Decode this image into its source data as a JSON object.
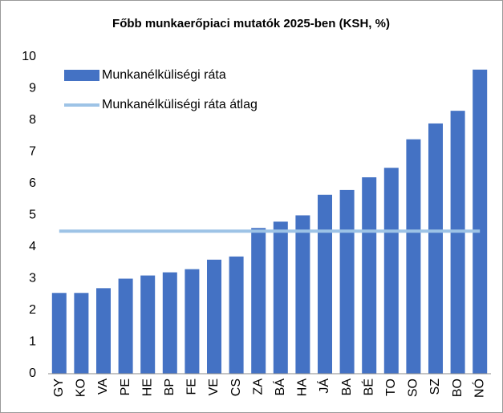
{
  "chart_data": {
    "type": "bar",
    "title": "Főbb munkaerőpiaci mutatók 2025-ben (KSH, %)",
    "categories": [
      "GY",
      "KO",
      "VA",
      "PE",
      "HE",
      "BP",
      "FE",
      "VE",
      "CS",
      "ZA",
      "BÁ",
      "HA",
      "JÁ",
      "BA",
      "BÉ",
      "TO",
      "SO",
      "SZ",
      "BO",
      "NÓ"
    ],
    "series": [
      {
        "name": "Munkanélküliségi ráta",
        "type": "bar",
        "color": "#4472c4",
        "values": [
          2.55,
          2.55,
          2.7,
          3.0,
          3.1,
          3.2,
          3.3,
          3.6,
          3.7,
          4.6,
          4.8,
          5.0,
          5.65,
          5.8,
          6.2,
          6.5,
          7.4,
          7.9,
          8.3,
          9.6
        ]
      },
      {
        "name": "Munkanélküliségi ráta átlag",
        "type": "line",
        "color": "#9dc3e6",
        "values": [
          4.5,
          4.5,
          4.5,
          4.5,
          4.5,
          4.5,
          4.5,
          4.5,
          4.5,
          4.5,
          4.5,
          4.5,
          4.5,
          4.5,
          4.5,
          4.5,
          4.5,
          4.5,
          4.5,
          4.5
        ]
      }
    ],
    "ylim": [
      0,
      10
    ],
    "yticks": [
      0,
      1,
      2,
      3,
      4,
      5,
      6,
      7,
      8,
      9,
      10
    ],
    "grid": false,
    "legend": "top-left"
  }
}
